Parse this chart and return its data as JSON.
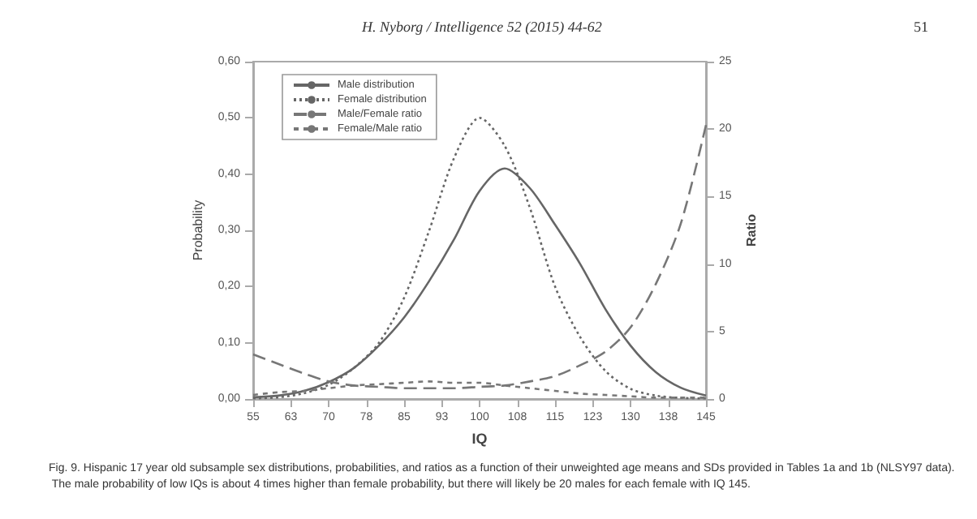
{
  "chart_data": {
    "type": "line",
    "xlabel": "IQ",
    "ylabel": "Probability",
    "y2label": "Ratio",
    "x": [
      55,
      60,
      65,
      70,
      75,
      80,
      85,
      90,
      95,
      100,
      105,
      110,
      115,
      120,
      125,
      130,
      135,
      140,
      145
    ],
    "series": [
      {
        "name": "Male distribution",
        "color": "#666666",
        "line_style": "solid",
        "values": [
          0.003,
          0.006,
          0.014,
          0.03,
          0.055,
          0.095,
          0.145,
          0.21,
          0.285,
          0.37,
          0.41,
          0.375,
          0.31,
          0.24,
          0.16,
          0.095,
          0.048,
          0.02,
          0.006
        ]
      },
      {
        "name": "Female distribution",
        "color": "#666666",
        "line_style": "dotted",
        "values": [
          0.001,
          0.003,
          0.01,
          0.025,
          0.055,
          0.1,
          0.18,
          0.3,
          0.43,
          0.5,
          0.45,
          0.34,
          0.2,
          0.11,
          0.05,
          0.018,
          0.006,
          0.002,
          0.001
        ]
      },
      {
        "name": "Male/Female ratio",
        "color": "#777777",
        "line_style": "dashed",
        "axis": "y2",
        "values": [
          3.3,
          2.6,
          1.9,
          1.3,
          1.0,
          0.9,
          0.8,
          0.8,
          0.8,
          0.9,
          1.0,
          1.3,
          1.7,
          2.5,
          3.5,
          5.3,
          8.5,
          13,
          20.3
        ]
      },
      {
        "name": "Female/Male ratio",
        "color": "#777777",
        "line_style": "dashed",
        "axis": "y2",
        "values": [
          0.3,
          0.5,
          0.6,
          0.8,
          1.0,
          1.1,
          1.2,
          1.3,
          1.2,
          1.2,
          1.0,
          0.8,
          0.6,
          0.4,
          0.3,
          0.2,
          0.1,
          0.1,
          0.1
        ]
      }
    ],
    "xlim": [
      55,
      145
    ],
    "xticks": [
      55,
      {
        "value": 62.5,
        "label": "63"
      },
      70,
      {
        "value": 77.5,
        "label": "78"
      },
      85,
      {
        "value": 92.5,
        "label": "93"
      },
      100,
      {
        "value": 107.5,
        "label": "108"
      },
      115,
      {
        "value": 122.5,
        "label": "123"
      },
      130,
      {
        "value": 137.5,
        "label": "138"
      },
      145
    ],
    "ylim": [
      0,
      0.6
    ],
    "yticks": [
      {
        "value": 0,
        "label": "0,00"
      },
      {
        "value": 0.1,
        "label": "0,10"
      },
      {
        "value": 0.2,
        "label": "0,20"
      },
      {
        "value": 0.3,
        "label": "0,30"
      },
      {
        "value": 0.4,
        "label": "0,40"
      },
      {
        "value": 0.5,
        "label": "0,50"
      },
      {
        "value": 0.6,
        "label": "0,60"
      }
    ],
    "y2lim": [
      0,
      25
    ],
    "y2ticks": [
      0,
      5,
      10,
      15,
      20,
      25
    ],
    "grid": false,
    "legend": "top left",
    "marker": "none",
    "annotations": [
      "H. Nyborg / Intelligence 52 (2015) 44-62",
      "51",
      "Fig. 9. Hispanic 17 year old subsample sex distributions, probabilities, and ratios as a function of their unweighted age means and SDs provided in Tables 1a and 1b (NLSY97 data). The male probability of low IQs is about 4 times higher than female probability, but there will likely be 20 males for each female with IQ 145."
    ]
  }
}
